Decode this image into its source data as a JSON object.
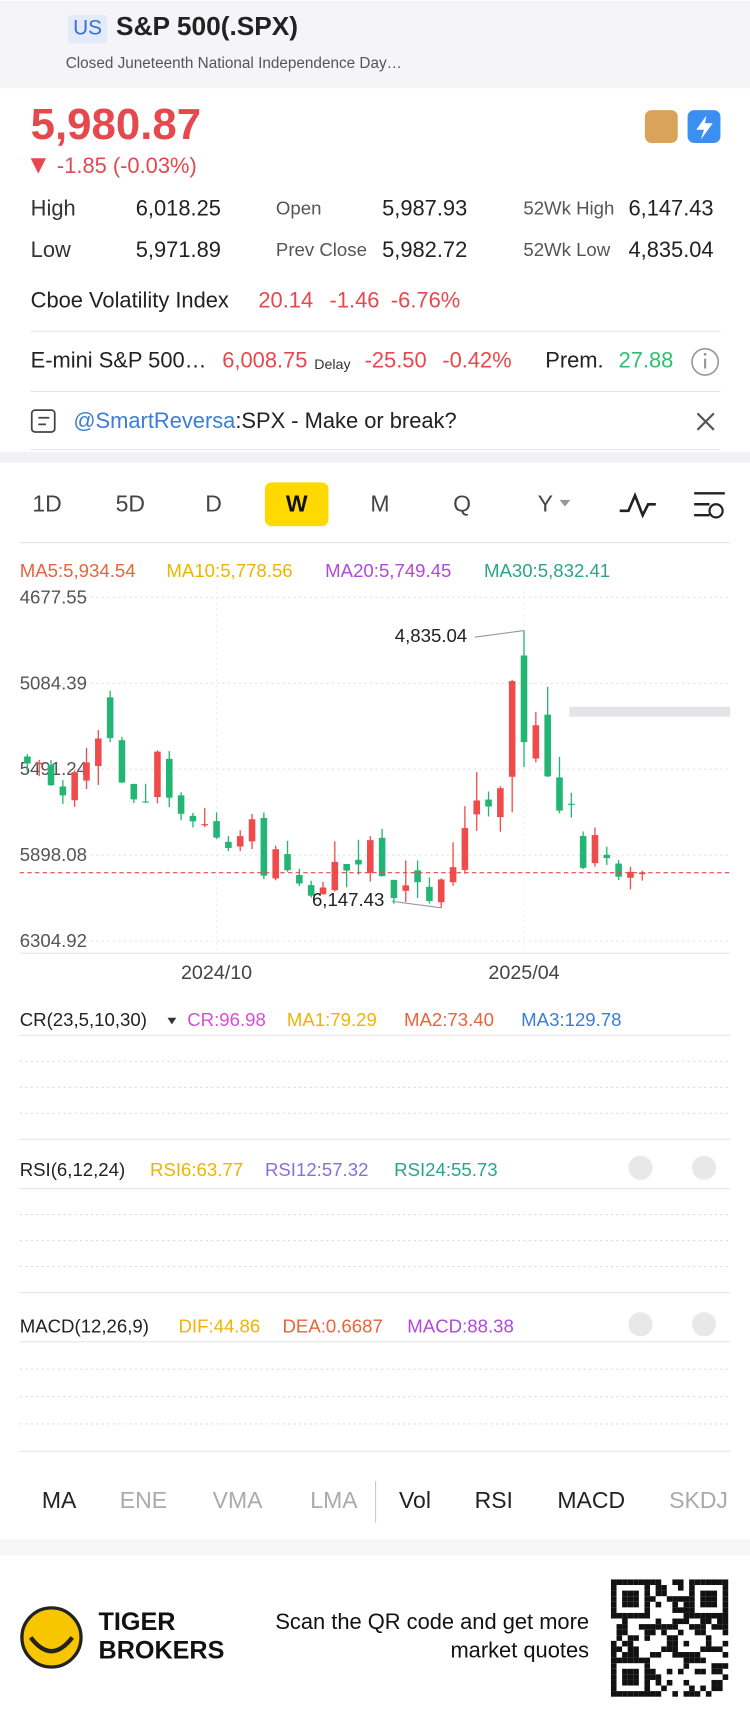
{
  "header": {
    "badge": "US",
    "title": "S&P 500(.SPX)",
    "subtitle": "Closed Juneteenth National Independence Day…"
  },
  "quote": {
    "price": "5,980.87",
    "change": "-1.85 (-0.03%)",
    "stats": [
      {
        "label": "High",
        "value": "6,018.25"
      },
      {
        "label": "Open",
        "value": "5,987.93"
      },
      {
        "label": "52Wk High",
        "value": "6,147.43"
      },
      {
        "label": "Low",
        "value": "5,971.89"
      },
      {
        "label": "Prev Close",
        "value": "5,982.72"
      },
      {
        "label": "52Wk Low",
        "value": "4,835.04"
      }
    ],
    "vix": {
      "label": "Cboe Volatility Index",
      "value": "20.14",
      "change": "-1.46",
      "pct": "-6.76%"
    },
    "futures": {
      "label": "E-mini S&P 500…",
      "value": "6,008.75",
      "delay": "Delay",
      "change": "-25.50",
      "pct": "-0.42%",
      "prem_label": "Prem.",
      "prem": "27.88"
    },
    "post": {
      "user": "@SmartReversa",
      "text": ":SPX - Make or break?"
    }
  },
  "period_tabs": {
    "items": [
      "1D",
      "5D",
      "D",
      "W",
      "M",
      "Q",
      "Y"
    ],
    "active": 3
  },
  "chart_data": {
    "type": "candlestick",
    "legend": [
      {
        "text": "MA5:5,934.54",
        "color": "#e8643a"
      },
      {
        "text": "MA10:5,778.56",
        "color": "#f0b400"
      },
      {
        "text": "MA20:5,749.45",
        "color": "#b04ad8"
      },
      {
        "text": "MA30:5,832.41",
        "color": "#2aa58a"
      }
    ],
    "ylim": [
      4677.55,
      6304.92
    ],
    "yticks": [
      6304.92,
      5898.08,
      5491.24,
      5084.39,
      4677.55
    ],
    "xticks": [
      {
        "value": 16,
        "label": "2024/10"
      },
      {
        "value": 42,
        "label": "2025/04"
      }
    ],
    "up_color": "#22b573",
    "down_color": "#f04b4b",
    "open": [
      5431,
      5468,
      5471,
      5573,
      5638,
      5545,
      5476,
      5151,
      5354,
      5561,
      5644,
      5623,
      5442,
      5615,
      5712,
      5757,
      5737,
      5835,
      5857,
      5833,
      5722,
      6008,
      5893,
      5992,
      6040,
      6083,
      6064,
      5940,
      5920,
      5982,
      5816,
      6015,
      6067,
      5970,
      6048,
      6121,
      6026,
      5968,
      5705,
      5635,
      5718,
      5527,
      4953,
      5441,
      5233,
      5530,
      5655,
      5807,
      5936,
      5896,
      5938,
      6005,
      5987.93
    ],
    "high": [
      5505,
      5524,
      5570,
      5655,
      5669,
      5585,
      5566,
      5363,
      5557,
      5651,
      5651,
      5652,
      5670,
      5733,
      5767,
      5765,
      5822,
      5879,
      5879,
      5869,
      6012,
      6017,
      5977,
      6044,
      6099,
      6085,
      6070,
      6050,
      5990,
      6023,
      6000,
      6128,
      6120,
      6101,
      6127,
      6147.43,
      6043,
      5986,
      5783,
      5715,
      5787,
      5695,
      5481,
      5459,
      5528,
      5700,
      5720,
      5964,
      5953,
      5944,
      6016,
      6060,
      6018.25
    ],
    "low": [
      5420,
      5447,
      5448,
      5543,
      5497,
      5390,
      5306,
      5120,
      5338,
      5560,
      5560,
      5402,
      5406,
      5600,
      5698,
      5674,
      5696,
      5808,
      5780,
      5703,
      5696,
      5853,
      5830,
      5963,
      6019,
      6024,
      5832,
      5940,
      5825,
      5808,
      5773,
      6015,
      5923,
      5923,
      6003,
      6008,
      5837,
      5666,
      5505,
      5597,
      5572,
      5069,
      4835.04,
      5220,
      5101,
      5433,
      5603,
      5786,
      5767,
      5858,
      5921,
      5953,
      5971.89
    ],
    "close": [
      5464,
      5460,
      5567,
      5615,
      5505,
      5459,
      5346,
      5344,
      5554,
      5634,
      5648,
      5408,
      5626,
      5702,
      5738,
      5751,
      5815,
      5864,
      5808,
      5728,
      5995,
      5870,
      5969,
      6032,
      6090,
      6051,
      5930,
      5971,
      5942,
      5827,
      5997,
      6101,
      6041,
      6026,
      6115,
      6013,
      5955,
      5770,
      5639,
      5668,
      5581,
      5074,
      5363,
      5283,
      5525,
      5687,
      5660,
      5958,
      5803,
      5912,
      6000,
      5977,
      5980.87
    ],
    "annotations": [
      {
        "text": "6,147.43",
        "ref": "high",
        "index": 35
      },
      {
        "text": "4,835.04",
        "ref": "low",
        "index": 42
      }
    ]
  },
  "indicators": [
    {
      "title": "CR(23,5,10,30)",
      "items": [
        {
          "text": "CR:96.98",
          "color": "#d64fd6"
        },
        {
          "text": "MA1:79.29",
          "color": "#f0b400"
        },
        {
          "text": "MA2:73.40",
          "color": "#e8643a"
        },
        {
          "text": "MA3:129.78",
          "color": "#3b7dd8"
        }
      ]
    },
    {
      "title": "RSI(6,12,24)",
      "items": [
        {
          "text": "RSI6:63.77",
          "color": "#f0b400"
        },
        {
          "text": "RSI12:57.32",
          "color": "#8a6fd6"
        },
        {
          "text": "RSI24:55.73",
          "color": "#2aa58a"
        }
      ]
    },
    {
      "title": "MACD(12,26,9)",
      "items": [
        {
          "text": "DIF:44.86",
          "color": "#f0b400"
        },
        {
          "text": "DEA:0.6687",
          "color": "#e8643a"
        },
        {
          "text": "MACD:88.38",
          "color": "#b04ad8"
        }
      ]
    }
  ],
  "indicator_tabs": [
    {
      "label": "MA",
      "active": true
    },
    {
      "label": "ENE",
      "active": false
    },
    {
      "label": "VMA",
      "active": false
    },
    {
      "label": "LMA",
      "active": false
    },
    {
      "label": "Vol",
      "active": true
    },
    {
      "label": "RSI",
      "active": true
    },
    {
      "label": "MACD",
      "active": true
    },
    {
      "label": "SKDJ",
      "active": false
    }
  ],
  "footer": {
    "brand": [
      "TIGER",
      "BROKERS"
    ],
    "message": [
      "Scan the QR code and get more",
      "market quotes"
    ]
  }
}
